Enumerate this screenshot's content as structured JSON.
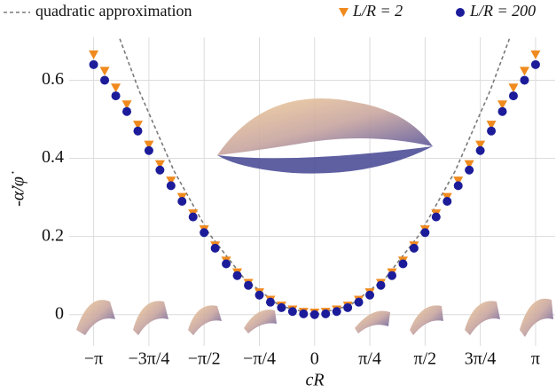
{
  "chart_data": {
    "type": "scatter",
    "x_label": "cR",
    "y_label": "-α̇/φ̇",
    "xlim": [
      -3.49,
      3.42
    ],
    "ylim": [
      -0.08,
      0.71
    ],
    "xticks": [
      {
        "value": -3.142,
        "label": "−π"
      },
      {
        "value": -2.356,
        "label": "−3π/4"
      },
      {
        "value": -1.571,
        "label": "−π/2"
      },
      {
        "value": -0.785,
        "label": "−π/4"
      },
      0,
      {
        "value": 0.785,
        "label": "π/4"
      },
      {
        "value": 1.571,
        "label": "π/2"
      },
      {
        "value": 2.356,
        "label": "3π/4"
      },
      {
        "value": 3.142,
        "label": "π"
      }
    ],
    "yticks": [
      0,
      0.2,
      0.4,
      0.6
    ],
    "grid": true,
    "x": [
      -3.142,
      -2.985,
      -2.827,
      -2.67,
      -2.513,
      -2.356,
      -2.199,
      -2.042,
      -1.885,
      -1.728,
      -1.571,
      -1.414,
      -1.257,
      -1.1,
      -0.942,
      -0.785,
      -0.628,
      -0.471,
      -0.314,
      -0.157,
      0,
      0.157,
      0.314,
      0.471,
      0.628,
      0.785,
      0.942,
      1.1,
      1.257,
      1.414,
      1.571,
      1.728,
      1.885,
      2.042,
      2.199,
      2.356,
      2.513,
      2.67,
      2.827,
      2.985,
      3.142
    ],
    "series": [
      {
        "name": "quadratic approximation",
        "color": "#7a7a7a",
        "style": "dashed",
        "x": [
          -2.77,
          -2.5,
          -2.0,
          -1.5,
          -1.0,
          -0.5,
          0,
          0.5,
          1.0,
          1.5,
          2.0,
          2.5,
          2.77
        ],
        "values": [
          0.706,
          0.575,
          0.368,
          0.207,
          0.092,
          0.023,
          0,
          0.023,
          0.092,
          0.207,
          0.368,
          0.575,
          0.706
        ]
      },
      {
        "name": "L/R = 2",
        "color": "#f08a1e",
        "marker": "triangle",
        "values": [
          0.665,
          0.623,
          0.58,
          0.537,
          0.485,
          0.434,
          0.384,
          0.342,
          0.3,
          0.258,
          0.217,
          0.176,
          0.137,
          0.107,
          0.08,
          0.056,
          0.037,
          0.022,
          0.012,
          0.006,
          0.004,
          0.006,
          0.012,
          0.022,
          0.037,
          0.056,
          0.08,
          0.107,
          0.137,
          0.176,
          0.217,
          0.258,
          0.3,
          0.342,
          0.384,
          0.434,
          0.485,
          0.537,
          0.58,
          0.623,
          0.665
        ]
      },
      {
        "name": "L/R = 200",
        "color": "#1c1c9a",
        "marker": "circle",
        "values": [
          0.64,
          0.6,
          0.56,
          0.52,
          0.47,
          0.42,
          0.37,
          0.33,
          0.29,
          0.25,
          0.21,
          0.17,
          0.13,
          0.1,
          0.075,
          0.05,
          0.032,
          0.018,
          0.008,
          0.002,
          0,
          0.002,
          0.008,
          0.018,
          0.032,
          0.05,
          0.075,
          0.1,
          0.13,
          0.17,
          0.21,
          0.25,
          0.29,
          0.33,
          0.37,
          0.42,
          0.47,
          0.52,
          0.56,
          0.6,
          0.64
        ]
      }
    ]
  }
}
